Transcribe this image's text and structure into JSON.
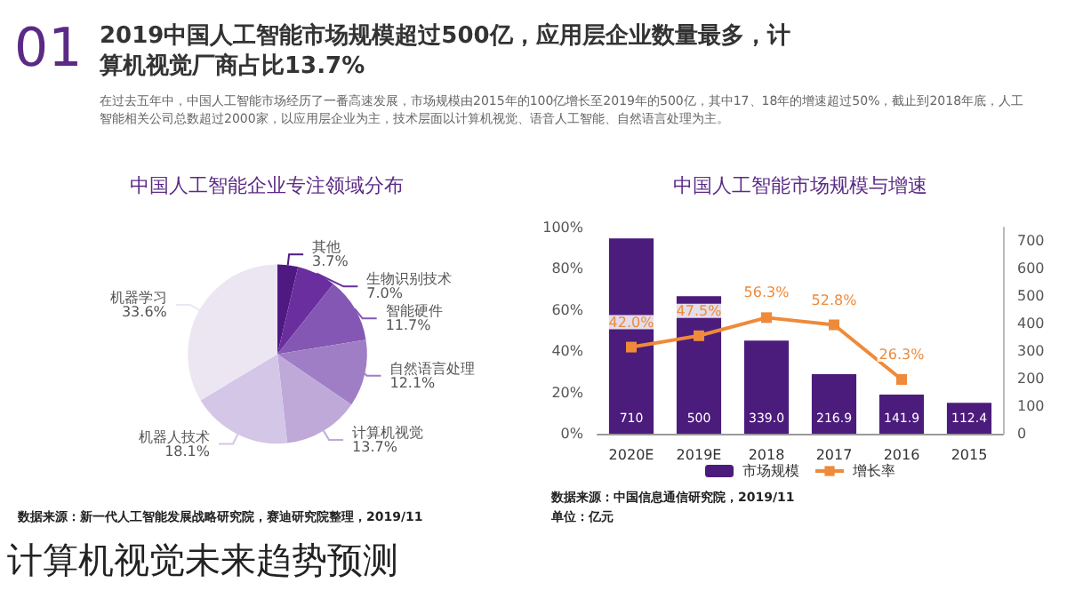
{
  "chart_data": [
    {
      "type": "other",
      "title": "2019中国人工智能市场规模超过500亿，应用层企业数量最多，计算机视觉厂商占比13.7%",
      "annotations": [
        "01",
        "在过去五年中，中国人工智能市场经历了一番高速发展，市场规模由2015年的100亿增长至2019年的500亿，其中17、18年的增速超过50%，截止到2018年底，人工智能相关公司总数超过2000家，以应用层企业为主，技术层面以计算机视觉、语音人工智能、自然语言处理为主。",
        "计算机视觉未来趋势预测"
      ]
    },
    {
      "type": "pie",
      "title": "中国人工智能企业专注领域分布",
      "categories": [
        "其他",
        "生物识别技术",
        "智能硬件",
        "自然语言处理",
        "计算机视觉",
        "机器人技术",
        "机器学习"
      ],
      "values": [
        3.7,
        7.0,
        11.7,
        12.1,
        13.7,
        18.1,
        33.6
      ],
      "value_labels": [
        "3.7%",
        "7.0%",
        "11.7%",
        "12.1%",
        "13.7%",
        "18.1%",
        "33.6%"
      ],
      "colors": [
        "#4e1a82",
        "#6a2e9e",
        "#8357b3",
        "#a07ec6",
        "#bfa9d9",
        "#d3c6e6",
        "#ece6f3"
      ],
      "annotations": [
        "数据来源：新一代人工智能发展战略研究院，赛迪研究院整理，2019/11"
      ],
      "legend": false
    },
    {
      "type": "bar",
      "title": "中国人工智能市场规模与增速",
      "categories": [
        "2020E",
        "2019E",
        "2018",
        "2017",
        "2016",
        "2015"
      ],
      "series": [
        {
          "name": "市场规模",
          "type": "bar",
          "axis": "y2",
          "color": "#4b1c7c",
          "values": [
            710,
            500,
            339.0,
            216.9,
            141.9,
            112.4
          ],
          "value_labels": [
            "710",
            "500",
            "339.0",
            "216.9",
            "141.9",
            "112.4"
          ]
        },
        {
          "name": "增长率",
          "type": "line",
          "axis": "y",
          "color": "#ee8a3a",
          "marker": "square",
          "values": [
            42.0,
            47.5,
            56.3,
            52.8,
            26.3,
            null
          ],
          "value_labels": [
            "42.0%",
            "47.5%",
            "56.3%",
            "52.8%",
            "26.3%",
            null
          ]
        }
      ],
      "ylim": [
        0,
        100
      ],
      "yticks": [
        {
          "value": 0,
          "label": "0%"
        },
        {
          "value": 20,
          "label": "20%"
        },
        {
          "value": 40,
          "label": "40%"
        },
        {
          "value": 60,
          "label": "60%"
        },
        {
          "value": 80,
          "label": "80%"
        },
        {
          "value": 100,
          "label": "100%"
        }
      ],
      "y2lim": [
        0,
        750
      ],
      "y2ticks": [
        0,
        100,
        200,
        300,
        400,
        500,
        600,
        700
      ],
      "legend": "bottom",
      "annotations": [
        "单位：亿元",
        "数据来源：中国信息通信研究院，2019/11"
      ]
    }
  ]
}
